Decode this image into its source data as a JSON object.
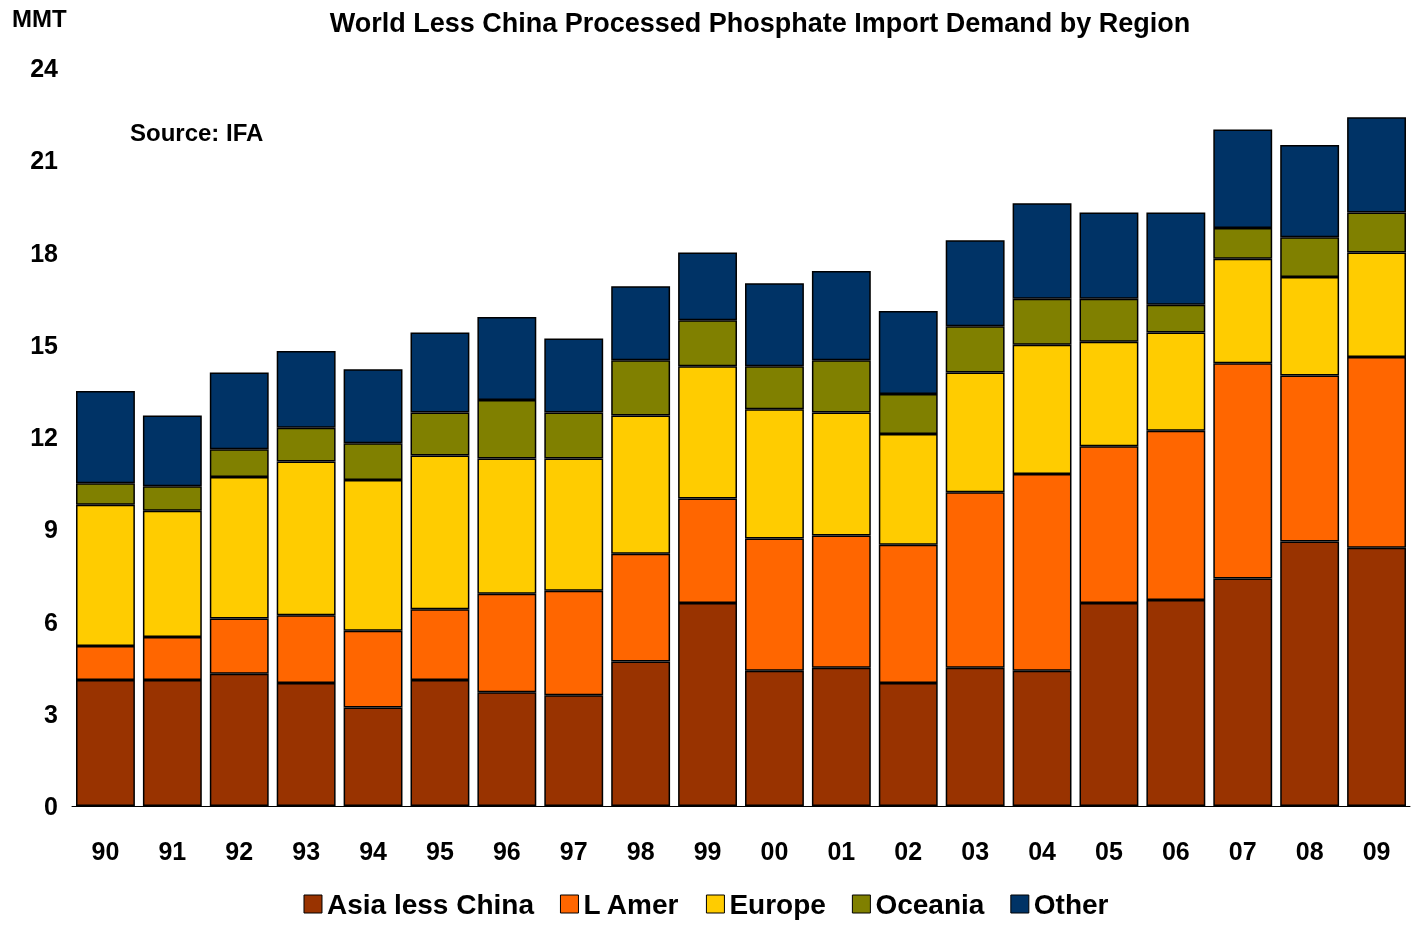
{
  "chart_data": {
    "type": "bar",
    "title": "World Less China Processed Phosphate Import Demand by Region",
    "ylabel": "MMT",
    "annotations": [
      "Source: IFA"
    ],
    "categories": [
      "90",
      "91",
      "92",
      "93",
      "94",
      "95",
      "96",
      "97",
      "98",
      "99",
      "00",
      "01",
      "02",
      "03",
      "04",
      "05",
      "06",
      "07",
      "08",
      "09"
    ],
    "stacked": true,
    "grid": false,
    "legend": "bottom",
    "ylim": [
      0,
      24
    ],
    "yticks": [
      0,
      3,
      6,
      9,
      12,
      15,
      18,
      21,
      24
    ],
    "series": [
      {
        "name": "Asia less China",
        "color": "#993300",
        "values": [
          4.1,
          4.1,
          4.3,
          4.0,
          3.2,
          4.1,
          3.7,
          3.6,
          4.7,
          6.6,
          4.4,
          4.5,
          4.0,
          4.5,
          4.4,
          6.6,
          6.7,
          7.4,
          8.6,
          8.4
        ]
      },
      {
        "name": "L Amer",
        "color": "#ff6600",
        "values": [
          1.1,
          1.4,
          1.8,
          2.2,
          2.5,
          2.3,
          3.2,
          3.4,
          3.5,
          3.4,
          4.3,
          4.3,
          4.5,
          5.7,
          6.4,
          5.1,
          5.5,
          7.0,
          5.4,
          6.2
        ]
      },
      {
        "name": "Europe",
        "color": "#ffcc00",
        "values": [
          4.6,
          4.1,
          4.6,
          5.0,
          4.9,
          5.0,
          4.4,
          4.3,
          4.5,
          4.3,
          4.2,
          4.0,
          3.6,
          3.9,
          4.2,
          3.4,
          3.2,
          3.4,
          3.2,
          3.4
        ]
      },
      {
        "name": "Oceania",
        "color": "#808000",
        "values": [
          0.7,
          0.8,
          0.9,
          1.1,
          1.2,
          1.4,
          1.9,
          1.5,
          1.8,
          1.5,
          1.4,
          1.7,
          1.3,
          1.5,
          1.5,
          1.4,
          0.9,
          1.0,
          1.3,
          1.3
        ]
      },
      {
        "name": "Other",
        "color": "#003366",
        "values": [
          3.0,
          2.3,
          2.5,
          2.5,
          2.4,
          2.6,
          2.7,
          2.4,
          2.4,
          2.2,
          2.7,
          2.9,
          2.7,
          2.8,
          3.1,
          2.8,
          3.0,
          3.2,
          3.0,
          3.1
        ]
      }
    ]
  }
}
